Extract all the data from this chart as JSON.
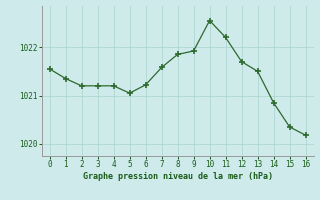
{
  "x": [
    0,
    1,
    2,
    3,
    4,
    5,
    6,
    7,
    8,
    9,
    10,
    11,
    12,
    13,
    14,
    15,
    16
  ],
  "y": [
    1021.55,
    1021.35,
    1021.2,
    1021.2,
    1021.2,
    1021.05,
    1021.22,
    1021.58,
    1021.85,
    1021.92,
    1022.55,
    1022.2,
    1021.7,
    1021.5,
    1020.85,
    1020.35,
    1020.18
  ],
  "line_color": "#2d6a2d",
  "marker_color": "#2d6a2d",
  "bg_color": "#ceeaea",
  "grid_color": "#b0d8d0",
  "title": "Graphe pression niveau de la mer (hPa)",
  "title_color": "#1a5c1a",
  "tick_color": "#1a5c1a",
  "ylim": [
    1019.75,
    1022.85
  ],
  "xlim": [
    -0.5,
    16.5
  ],
  "yticks": [
    1020,
    1021,
    1022
  ],
  "xticks": [
    0,
    1,
    2,
    3,
    4,
    5,
    6,
    7,
    8,
    9,
    10,
    11,
    12,
    13,
    14,
    15,
    16
  ],
  "figsize": [
    3.2,
    2.0
  ],
  "dpi": 100
}
